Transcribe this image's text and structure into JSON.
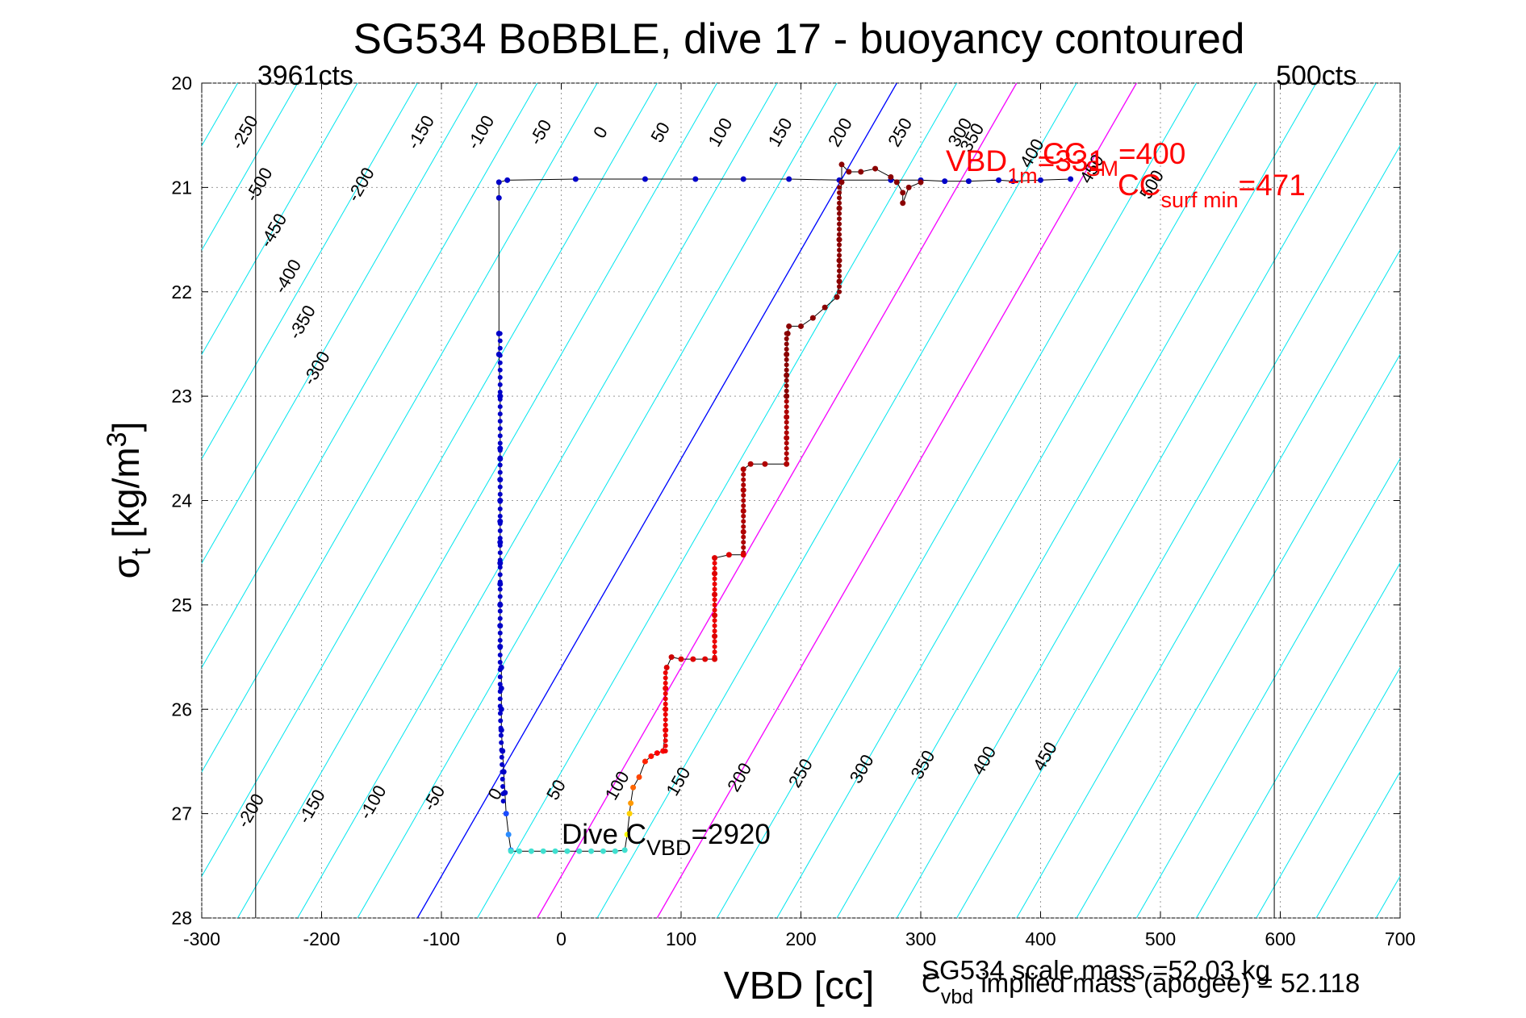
{
  "chart_data": {
    "type": "scatter",
    "title": "SG534 BoBBLE, dive 17 - buoyancy contoured",
    "xlabel": "VBD [cc]",
    "ylabel": "σ_t [kg/m^3]",
    "xlim": [
      -300,
      700
    ],
    "ylim": [
      20,
      28
    ],
    "y_reversed": true,
    "grid": true,
    "xticks": [
      "-300",
      "-200",
      "-100",
      "0",
      "100",
      "200",
      "300",
      "400",
      "500",
      "600",
      "700"
    ],
    "yticks": [
      "20",
      "21",
      "22",
      "23",
      "24",
      "25",
      "26",
      "27",
      "28"
    ],
    "limit_lines": [
      {
        "x": -255,
        "label": "3961cts"
      },
      {
        "x": 595,
        "label": "500cts"
      }
    ],
    "annotations": {
      "dive_cvbd": {
        "base": "Dive C",
        "sub": "VBD",
        "tail": "=2920"
      },
      "vbd_1m": {
        "base": "VBD",
        "sub": "1m",
        "tail": "=331"
      },
      "cc_sm": {
        "base": "CC",
        "sub": "SM",
        "tail": "=400"
      },
      "cc_surf_min": {
        "base": "CC",
        "sub": "surf min",
        "tail": "=471"
      },
      "scale_mass": "SG534 scale mass =52.03 kg",
      "implied_mass": {
        "base": "C",
        "sub": "vbd",
        "tail": " implied mass (apogee) = 52.118"
      }
    },
    "buoyancy_contours": {
      "color": "#00e5ee",
      "upper_labels": [
        "-500",
        "-450",
        "-400",
        "-350",
        "-300",
        "-250",
        "-200",
        "-150",
        "-100",
        "-50",
        "0",
        "50",
        "100",
        "150",
        "200",
        "250",
        "300",
        "350",
        "400",
        "450",
        "500"
      ],
      "lower_labels": [
        "-200",
        "-150",
        "-100",
        "-50",
        "0",
        "50",
        "100",
        "150",
        "200",
        "250",
        "300",
        "350",
        "400",
        "450"
      ]
    },
    "reference_lines": [
      {
        "name": "neutral",
        "color": "#0000ff",
        "points": [
          [
            -120,
            28
          ],
          [
            280,
            20
          ]
        ]
      },
      {
        "name": "sm",
        "color": "#ff00ff",
        "points": [
          [
            -20,
            28
          ],
          [
            380,
            20
          ]
        ]
      },
      {
        "name": "surf",
        "color": "#ff00ff",
        "points": [
          [
            80,
            28
          ],
          [
            480,
            20
          ]
        ]
      }
    ],
    "dive": {
      "color": "#0000c8",
      "points": [
        [
          -45,
          20.93
        ],
        [
          -52,
          20.95
        ],
        [
          -52,
          21.1
        ],
        [
          -52,
          22.4
        ],
        [
          -52,
          22.6
        ],
        [
          -51,
          23.0
        ],
        [
          -51,
          23.5
        ],
        [
          -51,
          23.6
        ],
        [
          -51,
          23.8
        ],
        [
          -51,
          24.0
        ],
        [
          -51,
          24.2
        ],
        [
          -51,
          24.4
        ],
        [
          -51,
          24.6
        ],
        [
          -51,
          24.8
        ],
        [
          -51,
          25.0
        ],
        [
          -51,
          25.2
        ],
        [
          -51,
          25.4
        ],
        [
          -50,
          25.6
        ],
        [
          -50,
          25.8
        ],
        [
          -50,
          26.0
        ],
        [
          -50,
          26.2
        ],
        [
          -49,
          26.4
        ],
        [
          -48,
          26.6
        ],
        [
          -47,
          26.8
        ],
        [
          -46,
          27.0
        ],
        [
          -44,
          27.2
        ],
        [
          -42,
          27.35
        ]
      ],
      "top_points": [
        [
          12,
          20.92
        ],
        [
          70,
          20.92
        ],
        [
          112,
          20.92
        ],
        [
          152,
          20.92
        ],
        [
          190,
          20.92
        ],
        [
          232,
          20.93
        ],
        [
          275,
          20.93
        ],
        [
          300,
          20.93
        ],
        [
          320,
          20.94
        ],
        [
          340,
          20.94
        ],
        [
          365,
          20.93
        ],
        [
          377,
          20.94
        ],
        [
          400,
          20.93
        ],
        [
          425,
          20.92
        ]
      ]
    },
    "bottom": {
      "points": [
        [
          -42,
          27.36
        ],
        [
          -35,
          27.36
        ],
        [
          -25,
          27.36
        ],
        [
          -15,
          27.36
        ],
        [
          -5,
          27.36
        ],
        [
          5,
          27.36
        ],
        [
          15,
          27.36
        ],
        [
          25,
          27.36
        ],
        [
          35,
          27.36
        ],
        [
          45,
          27.36
        ],
        [
          53,
          27.35
        ],
        [
          55,
          27.2
        ],
        [
          57,
          27.0
        ],
        [
          58,
          26.9
        ],
        [
          60,
          26.75
        ],
        [
          65,
          26.65
        ],
        [
          70,
          26.5
        ],
        [
          75,
          26.45
        ],
        [
          80,
          26.42
        ],
        [
          85,
          26.4
        ],
        [
          87,
          26.2
        ],
        [
          87,
          26.0
        ],
        [
          87,
          25.8
        ],
        [
          88,
          25.6
        ],
        [
          92,
          25.5
        ]
      ]
    },
    "climb": {
      "color": "#cc0000",
      "points": [
        [
          100,
          25.52
        ],
        [
          110,
          25.52
        ],
        [
          120,
          25.52
        ],
        [
          128,
          25.52
        ],
        [
          128,
          25.3
        ],
        [
          128,
          25.1
        ],
        [
          128,
          24.9
        ],
        [
          128,
          24.7
        ],
        [
          128,
          24.55
        ],
        [
          140,
          24.52
        ],
        [
          152,
          24.52
        ],
        [
          152,
          24.3
        ],
        [
          152,
          24.1
        ],
        [
          152,
          23.9
        ],
        [
          152,
          23.7
        ],
        [
          158,
          23.65
        ],
        [
          170,
          23.65
        ],
        [
          188,
          23.65
        ],
        [
          188,
          23.4
        ],
        [
          188,
          23.2
        ],
        [
          188,
          23.0
        ],
        [
          188,
          22.8
        ],
        [
          188,
          22.6
        ],
        [
          189,
          22.4
        ],
        [
          190,
          22.33
        ],
        [
          200,
          22.33
        ],
        [
          210,
          22.25
        ],
        [
          220,
          22.15
        ],
        [
          230,
          22.05
        ],
        [
          232,
          21.9
        ],
        [
          232,
          21.7
        ],
        [
          232,
          21.5
        ],
        [
          232,
          21.2
        ],
        [
          234,
          20.95
        ],
        [
          234,
          20.78
        ],
        [
          240,
          20.85
        ],
        [
          250,
          20.85
        ],
        [
          262,
          20.82
        ],
        [
          275,
          20.9
        ],
        [
          280,
          20.95
        ],
        [
          285,
          21.05
        ],
        [
          285,
          21.15
        ],
        [
          290,
          21.0
        ],
        [
          300,
          20.95
        ]
      ]
    }
  }
}
